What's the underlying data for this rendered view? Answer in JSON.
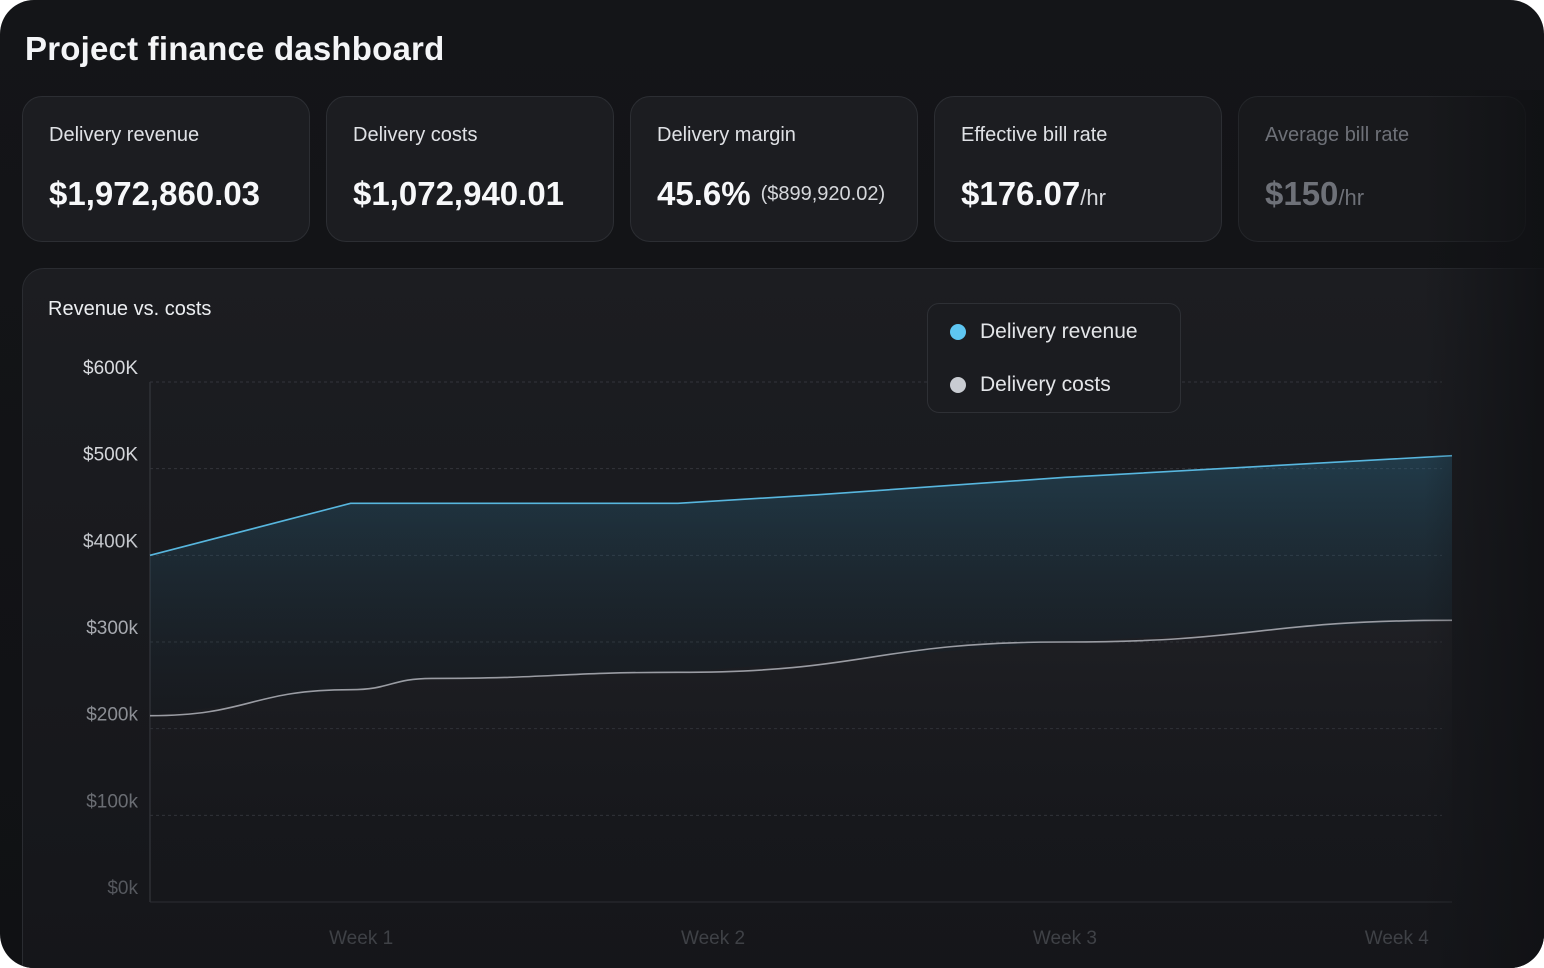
{
  "page": {
    "title": "Project finance dashboard"
  },
  "cards": [
    {
      "label": "Delivery revenue",
      "value": "$1,972,860.03"
    },
    {
      "label": "Delivery costs",
      "value": "$1,072,940.01"
    },
    {
      "label": "Delivery margin",
      "value": "45.6%",
      "sub": "($899,920.02)"
    },
    {
      "label": "Effective bill rate",
      "value": "$176.07",
      "unit": "/hr"
    },
    {
      "label": "Average bill rate",
      "value": "$150",
      "unit": "/hr"
    }
  ],
  "legend": {
    "items": [
      {
        "label": "Delivery revenue",
        "color": "#5ec6f2"
      },
      {
        "label": "Delivery costs",
        "color": "#c9ccd2"
      }
    ]
  },
  "chart_data": {
    "type": "area",
    "title": "Revenue vs. costs",
    "xlabel": "",
    "ylabel": "",
    "x": [
      0,
      0.6,
      1.6,
      2.0,
      2.6,
      3.3
    ],
    "x_tick_positions": [
      0.6,
      1.6,
      2.6,
      3.6
    ],
    "x_tick_labels": [
      "Week 1",
      "Week 2",
      "Week 3",
      "Week 4"
    ],
    "xlim": [
      0,
      3.7
    ],
    "ylim": [
      0,
      600000
    ],
    "y_ticks": [
      0,
      100000,
      200000,
      300000,
      400000,
      500000,
      600000
    ],
    "y_tick_labels": [
      "$0k",
      "$100k",
      "$200k",
      "$300k",
      "$400K",
      "$500K",
      "$600K"
    ],
    "series": [
      {
        "name": "Delivery revenue",
        "color": "#5ec6f2",
        "x": [
          0,
          0.57,
          1.5,
          1.9,
          2.6,
          3.7
        ],
        "values": [
          400000,
          460000,
          460000,
          470000,
          490000,
          515000
        ]
      },
      {
        "name": "Delivery costs",
        "color": "#9a9ca3",
        "x": [
          0,
          0.57,
          0.8,
          1.5,
          2.6,
          3.7
        ],
        "values": [
          215000,
          245000,
          258000,
          265000,
          300000,
          325000
        ]
      }
    ]
  }
}
